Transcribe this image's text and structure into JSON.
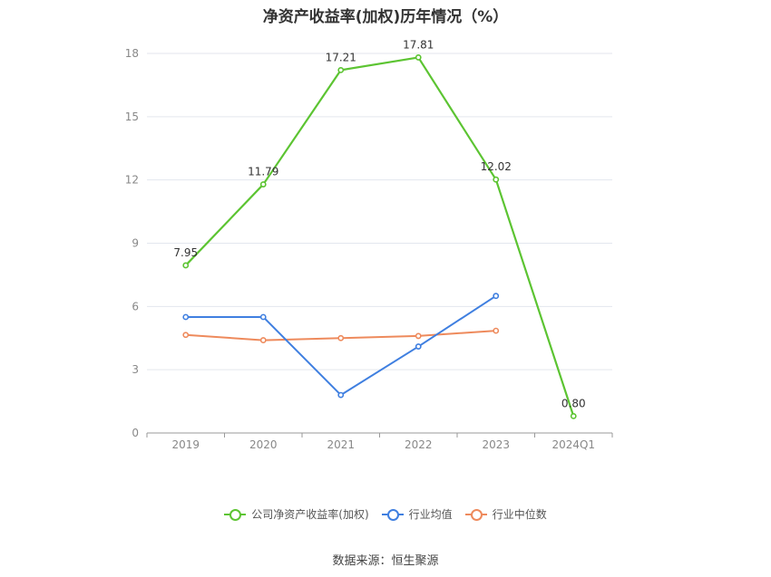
{
  "source_text": "数据来源：恒生聚源",
  "chart_data": {
    "type": "line",
    "title": "净资产收益率(加权)历年情况（%）",
    "xlabel": "",
    "ylabel": "",
    "categories": [
      "2019",
      "2020",
      "2021",
      "2022",
      "2023",
      "2024Q1"
    ],
    "ylim": [
      0,
      18
    ],
    "yticks": [
      0,
      3,
      6,
      9,
      12,
      15,
      18
    ],
    "grid": true,
    "legend_position": "bottom",
    "series": [
      {
        "name": "公司净资产收益率(加权)",
        "color": "#5cc432",
        "values": [
          7.95,
          11.79,
          17.21,
          17.81,
          12.02,
          0.8
        ],
        "labels": [
          "7.95",
          "11.79",
          "17.21",
          "17.81",
          "12.02",
          "0.80"
        ]
      },
      {
        "name": "行业均值",
        "color": "#3f7fe0",
        "values": [
          5.5,
          5.5,
          1.8,
          4.1,
          6.5,
          null
        ]
      },
      {
        "name": "行业中位数",
        "color": "#ee8a5c",
        "values": [
          4.65,
          4.4,
          4.5,
          4.6,
          4.85,
          null
        ]
      }
    ]
  }
}
